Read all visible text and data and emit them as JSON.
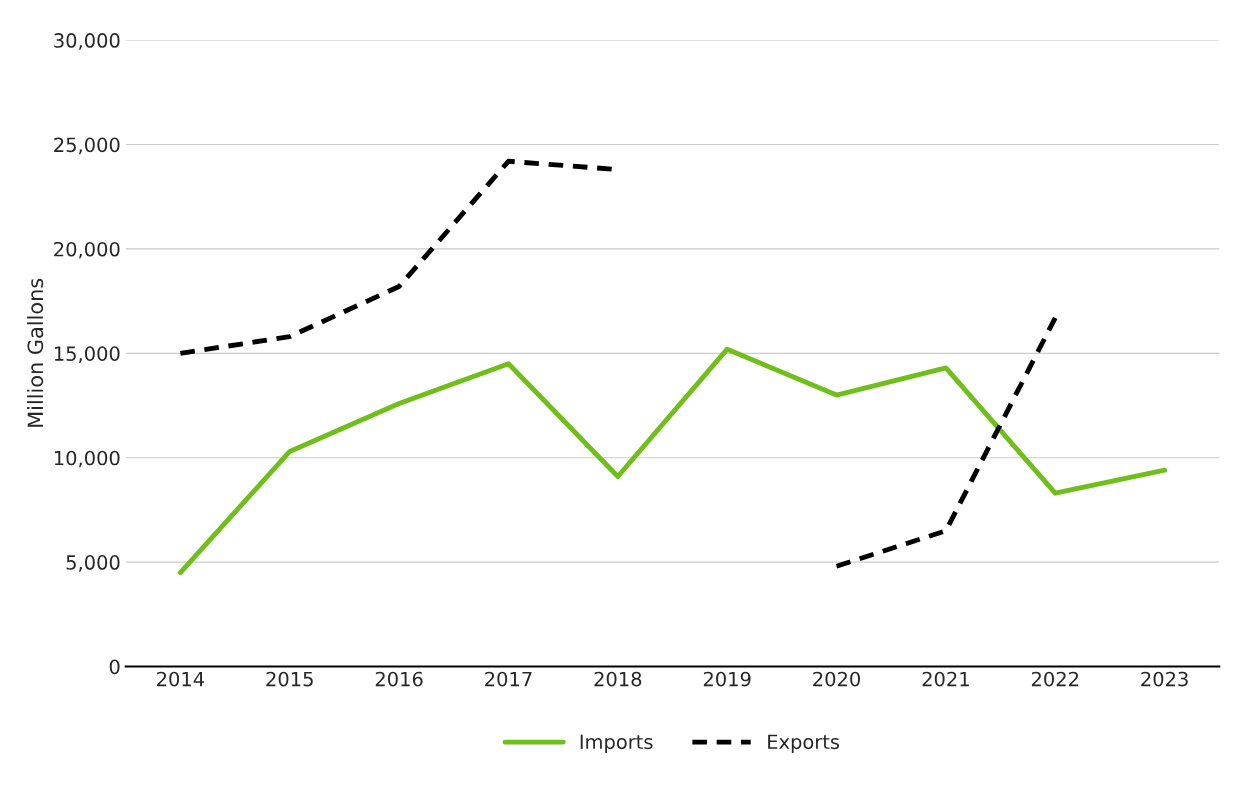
{
  "chart_data": {
    "type": "line",
    "ylabel": "Million Gallons",
    "categories": [
      "2014",
      "2015",
      "2016",
      "2017",
      "2018",
      "2019",
      "2020",
      "2021",
      "2022",
      "2023"
    ],
    "series": [
      {
        "name": "Imports",
        "color": "#6fbe1a",
        "line_style": "solid",
        "values": [
          4500,
          10300,
          12600,
          14500,
          9100,
          15200,
          13000,
          14300,
          8300,
          9400
        ]
      },
      {
        "name": "Exports",
        "color": "#000000",
        "line_style": "dashed",
        "values": [
          15000,
          15800,
          18200,
          24200,
          23800,
          null,
          4800,
          6500,
          16700,
          null
        ]
      }
    ],
    "ylim": [
      0,
      30000
    ],
    "yticks": [
      {
        "value": 0,
        "label": "0"
      },
      {
        "value": 5000,
        "label": "5,000"
      },
      {
        "value": 10000,
        "label": "10,000"
      },
      {
        "value": 15000,
        "label": "15,000"
      },
      {
        "value": 20000,
        "label": "20,000"
      },
      {
        "value": 25000,
        "label": "25,000"
      },
      {
        "value": 30000,
        "label": "30,000"
      }
    ],
    "grid": "y",
    "legend": "bottom",
    "marker": "none"
  }
}
